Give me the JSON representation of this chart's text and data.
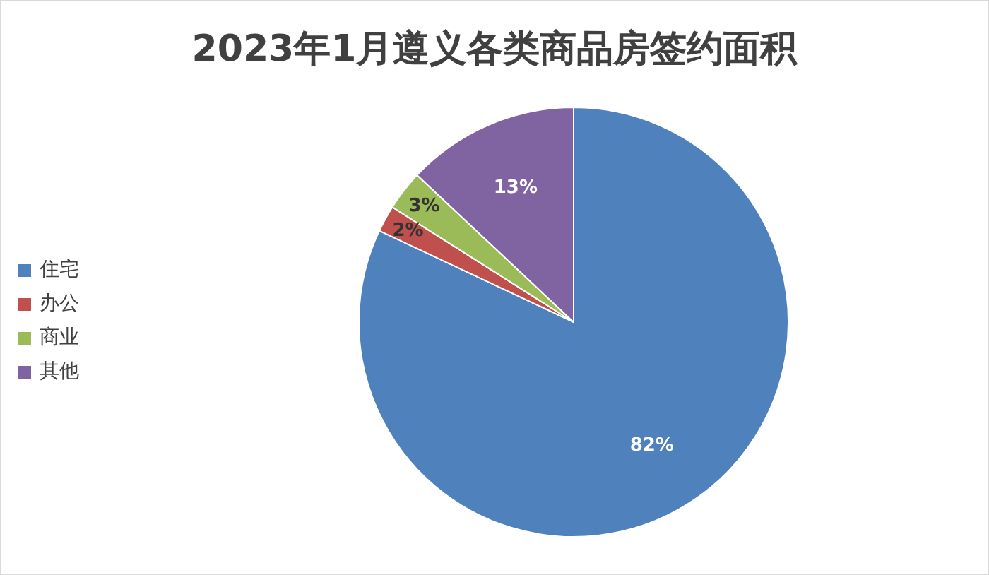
{
  "chart_data": {
    "type": "pie",
    "title": "2023年1月遵义各类商品房签约面积",
    "categories": [
      "住宅",
      "办公",
      "商业",
      "其他"
    ],
    "values": [
      82,
      2,
      3,
      13
    ],
    "colors": [
      "#4f81bd",
      "#c0504d",
      "#9bbb59",
      "#8064a2"
    ],
    "value_labels": [
      "82%",
      "2%",
      "3%",
      "13%"
    ],
    "legend": "left"
  }
}
